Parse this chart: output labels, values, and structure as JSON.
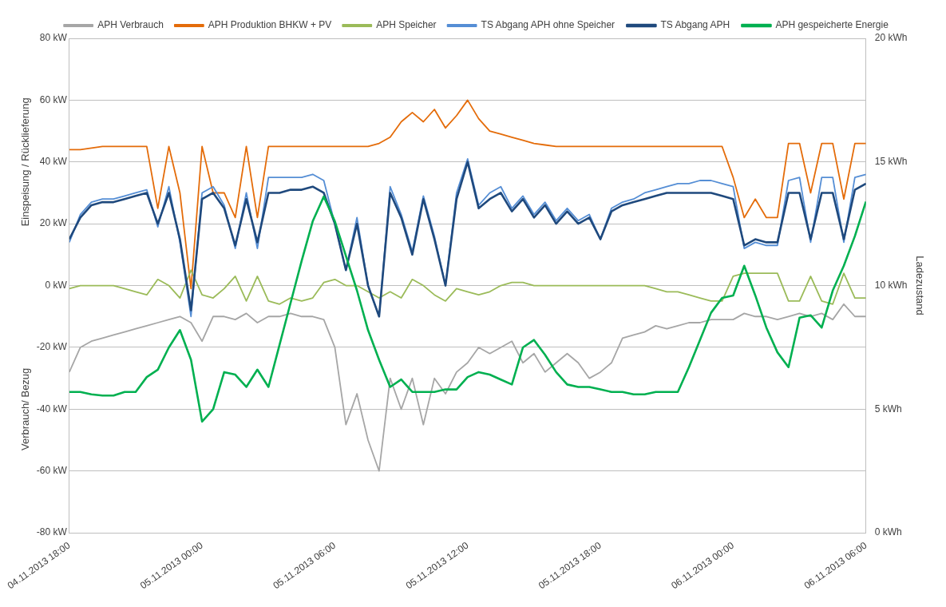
{
  "chart_data": {
    "type": "line",
    "ylabel": "Einspeisung / Rücklieferung",
    "y2label": "Ladezustand",
    "annotations": [
      "Verbrauch/ Bezug"
    ],
    "x": [
      "2013-11-04T18:00",
      "2013-11-04T18:30",
      "2013-11-04T19:00",
      "2013-11-04T19:30",
      "2013-11-04T20:00",
      "2013-11-04T20:30",
      "2013-11-04T21:00",
      "2013-11-04T21:30",
      "2013-11-04T22:00",
      "2013-11-04T22:30",
      "2013-11-04T23:00",
      "2013-11-04T23:30",
      "2013-11-05T00:00",
      "2013-11-05T00:30",
      "2013-11-05T01:00",
      "2013-11-05T01:30",
      "2013-11-05T02:00",
      "2013-11-05T02:30",
      "2013-11-05T03:00",
      "2013-11-05T03:30",
      "2013-11-05T04:00",
      "2013-11-05T04:30",
      "2013-11-05T05:00",
      "2013-11-05T05:30",
      "2013-11-05T06:00",
      "2013-11-05T06:30",
      "2013-11-05T07:00",
      "2013-11-05T07:30",
      "2013-11-05T08:00",
      "2013-11-05T08:30",
      "2013-11-05T09:00",
      "2013-11-05T09:30",
      "2013-11-05T10:00",
      "2013-11-05T10:30",
      "2013-11-05T11:00",
      "2013-11-05T11:30",
      "2013-11-05T12:00",
      "2013-11-05T12:30",
      "2013-11-05T13:00",
      "2013-11-05T13:30",
      "2013-11-05T14:00",
      "2013-11-05T14:30",
      "2013-11-05T15:00",
      "2013-11-05T15:30",
      "2013-11-05T16:00",
      "2013-11-05T16:30",
      "2013-11-05T17:00",
      "2013-11-05T17:30",
      "2013-11-05T18:00",
      "2013-11-05T18:30",
      "2013-11-05T19:00",
      "2013-11-05T19:30",
      "2013-11-05T20:00",
      "2013-11-05T20:30",
      "2013-11-05T21:00",
      "2013-11-05T21:30",
      "2013-11-05T22:00",
      "2013-11-05T22:30",
      "2013-11-05T23:00",
      "2013-11-05T23:30",
      "2013-11-06T00:00",
      "2013-11-06T00:30",
      "2013-11-06T01:00",
      "2013-11-06T01:30",
      "2013-11-06T02:00",
      "2013-11-06T02:30",
      "2013-11-06T03:00",
      "2013-11-06T03:30",
      "2013-11-06T04:00",
      "2013-11-06T04:30",
      "2013-11-06T05:00",
      "2013-11-06T05:30",
      "2013-11-06T06:00"
    ],
    "xlim": [
      "2013-11-04T18:00",
      "2013-11-06T06:00"
    ],
    "xticks": [
      {
        "value": "2013-11-04T18:00",
        "label": "04.11.2013 18:00"
      },
      {
        "value": "2013-11-05T00:00",
        "label": "05.11.2013 00:00"
      },
      {
        "value": "2013-11-05T06:00",
        "label": "05.11.2013 06:00"
      },
      {
        "value": "2013-11-05T12:00",
        "label": "05.11.2013 12:00"
      },
      {
        "value": "2013-11-05T18:00",
        "label": "05.11.2013 18:00"
      },
      {
        "value": "2013-11-06T00:00",
        "label": "06.11.2013 00:00"
      },
      {
        "value": "2013-11-06T06:00",
        "label": "06.11.2013 06:00"
      }
    ],
    "ylim": [
      -80,
      80
    ],
    "yticks": [
      {
        "value": -80,
        "label": "-80 kW"
      },
      {
        "value": -60,
        "label": "-60 kW"
      },
      {
        "value": -40,
        "label": "-40 kW"
      },
      {
        "value": -20,
        "label": "-20 kW"
      },
      {
        "value": 0,
        "label": "0 kW"
      },
      {
        "value": 20,
        "label": "20 kW"
      },
      {
        "value": 40,
        "label": "40 kW"
      },
      {
        "value": 60,
        "label": "60 kW"
      },
      {
        "value": 80,
        "label": "80 kW"
      }
    ],
    "y2lim": [
      0,
      20
    ],
    "y2ticks": [
      {
        "value": 0,
        "label": "0 kWh"
      },
      {
        "value": 5,
        "label": "5 kWh"
      },
      {
        "value": 10,
        "label": "10 kWh"
      },
      {
        "value": 15,
        "label": "15 kWh"
      },
      {
        "value": 20,
        "label": "20 kWh"
      }
    ],
    "grid": "y",
    "legend": "top",
    "marker": "none",
    "line_style": "solid",
    "series": [
      {
        "name": "APH Verbrauch",
        "color": "#a6a6a6",
        "values": [
          -28,
          -20,
          -18,
          -17,
          -16,
          -15,
          -14,
          -13,
          -12,
          -11,
          -10,
          -12,
          -18,
          -10,
          -10,
          -11,
          -9,
          -12,
          -10,
          -10,
          -9,
          -10,
          -10,
          -11,
          -20,
          -45,
          -35,
          -50,
          -60,
          -30,
          -40,
          -30,
          -45,
          -30,
          -35,
          -28,
          -25,
          -20,
          -22,
          -20,
          -18,
          -25,
          -22,
          -28,
          -25,
          -22,
          -25,
          -30,
          -28,
          -25,
          -17,
          -16,
          -15,
          -13,
          -14,
          -13,
          -12,
          -12,
          -11,
          -11,
          -11,
          -9,
          -10,
          -10,
          -11,
          -10,
          -9,
          -10,
          -9,
          -11,
          -6,
          -10,
          -10
        ]
      },
      {
        "name": "APH Produktion BHKW + PV",
        "color": "#e46c0a",
        "values": [
          44,
          44,
          44.5,
          45,
          45,
          45,
          45,
          45,
          25,
          45,
          30,
          -1,
          45,
          30,
          30,
          22,
          45,
          22,
          45,
          45,
          45,
          45,
          45,
          45,
          45,
          45,
          45,
          45,
          46,
          48,
          53,
          56,
          53,
          57,
          51,
          55,
          60,
          54,
          50,
          49,
          48,
          47,
          46,
          45.5,
          45,
          45,
          45,
          45,
          45,
          45,
          45,
          45,
          45,
          45,
          45,
          45,
          45,
          45,
          45,
          45,
          35,
          22,
          28,
          22,
          22,
          46,
          46,
          30,
          46,
          46,
          28,
          46,
          46
        ]
      },
      {
        "name": "APH Speicher",
        "color": "#9bbb59",
        "values": [
          -1,
          0,
          0,
          0,
          0,
          -1,
          -2,
          -3,
          2,
          0,
          -4,
          5,
          -3,
          -4,
          -1,
          3,
          -5,
          3,
          -5,
          -6,
          -4,
          -5,
          -4,
          1,
          2,
          0,
          0,
          -2,
          -4,
          -2,
          -4,
          2,
          0,
          -3,
          -5,
          -1,
          -2,
          -3,
          -2,
          0,
          1,
          1,
          0,
          0,
          0,
          0,
          0,
          0,
          0,
          0,
          0,
          0,
          0,
          -1,
          -2,
          -2,
          -3,
          -4,
          -5,
          -5,
          3,
          4,
          4,
          4,
          4,
          -5,
          -5,
          3,
          -5,
          -6,
          4,
          -4,
          -4
        ]
      },
      {
        "name": "TS Abgang APH ohne Speicher",
        "color": "#558ed5",
        "values": [
          14,
          23,
          27,
          28,
          28,
          29,
          30,
          31,
          19,
          32,
          14,
          -10,
          30,
          32,
          26,
          12,
          30,
          12,
          35,
          35,
          35,
          35,
          36,
          34,
          20,
          5,
          22,
          0,
          -10,
          32,
          23,
          11,
          29,
          16,
          0,
          30,
          41,
          26,
          30,
          32,
          25,
          29,
          23,
          27,
          21,
          25,
          21,
          23,
          15,
          25,
          27,
          28,
          30,
          31,
          32,
          33,
          33,
          34,
          34,
          33,
          32,
          12,
          14,
          13,
          13,
          34,
          35,
          14,
          35,
          35,
          14,
          35,
          36
        ]
      },
      {
        "name": "TS Abgang APH",
        "color": "#1f497d",
        "values": [
          15,
          22,
          26,
          27,
          27,
          28,
          29,
          30,
          20,
          30,
          15,
          -8,
          28,
          30,
          25,
          13,
          28,
          14,
          30,
          30,
          31,
          31,
          32,
          30,
          20,
          5,
          20,
          0,
          -10,
          30,
          22,
          10,
          28,
          15,
          0,
          28,
          40,
          25,
          28,
          30,
          24,
          28,
          22,
          26,
          20,
          24,
          20,
          22,
          15,
          24,
          26,
          27,
          28,
          29,
          30,
          30,
          30,
          30,
          30,
          29,
          28,
          13,
          15,
          14,
          14,
          30,
          30,
          15,
          30,
          30,
          15,
          31,
          33
        ]
      },
      {
        "name": "APH gespeicherte Energie",
        "color": "#00b050",
        "axis": "y2",
        "values": [
          5.7,
          5.7,
          5.6,
          5.55,
          5.55,
          5.7,
          5.7,
          6.3,
          6.6,
          7.5,
          8.2,
          7.0,
          4.5,
          5.0,
          6.5,
          6.4,
          5.9,
          6.6,
          5.9,
          7.6,
          9.3,
          11.0,
          12.6,
          13.6,
          12.6,
          11.2,
          9.8,
          8.2,
          7.0,
          5.9,
          6.2,
          5.7,
          5.7,
          5.7,
          5.8,
          5.8,
          6.3,
          6.5,
          6.4,
          6.2,
          6.0,
          7.5,
          7.8,
          7.2,
          6.5,
          6.0,
          5.9,
          5.9,
          5.8,
          5.7,
          5.7,
          5.6,
          5.6,
          5.7,
          5.7,
          5.7,
          6.7,
          7.8,
          8.9,
          9.5,
          9.6,
          10.8,
          9.6,
          8.3,
          7.3,
          6.7,
          8.7,
          8.8,
          8.3,
          9.8,
          10.8,
          12.0,
          13.4
        ]
      }
    ]
  }
}
